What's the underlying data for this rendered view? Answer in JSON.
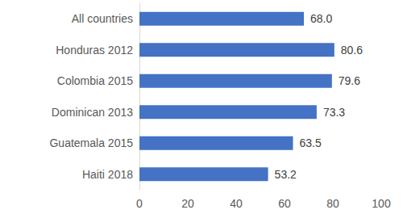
{
  "chart_data": {
    "type": "bar",
    "orientation": "horizontal",
    "categories": [
      "All countries",
      "Honduras 2012",
      "Colombia 2015",
      "Dominican 2013",
      "Guatemala 2015",
      "Haiti 2018"
    ],
    "values": [
      68.0,
      80.6,
      79.6,
      73.3,
      63.5,
      53.2
    ],
    "value_labels": [
      "68.0",
      "80.6",
      "79.6",
      "73.3",
      "63.5",
      "53.2"
    ],
    "color": "#4472c4",
    "xlim": [
      0,
      100
    ],
    "xticks": [
      0,
      20,
      40,
      60,
      80,
      100
    ],
    "grid": false,
    "data_labels": true
  }
}
